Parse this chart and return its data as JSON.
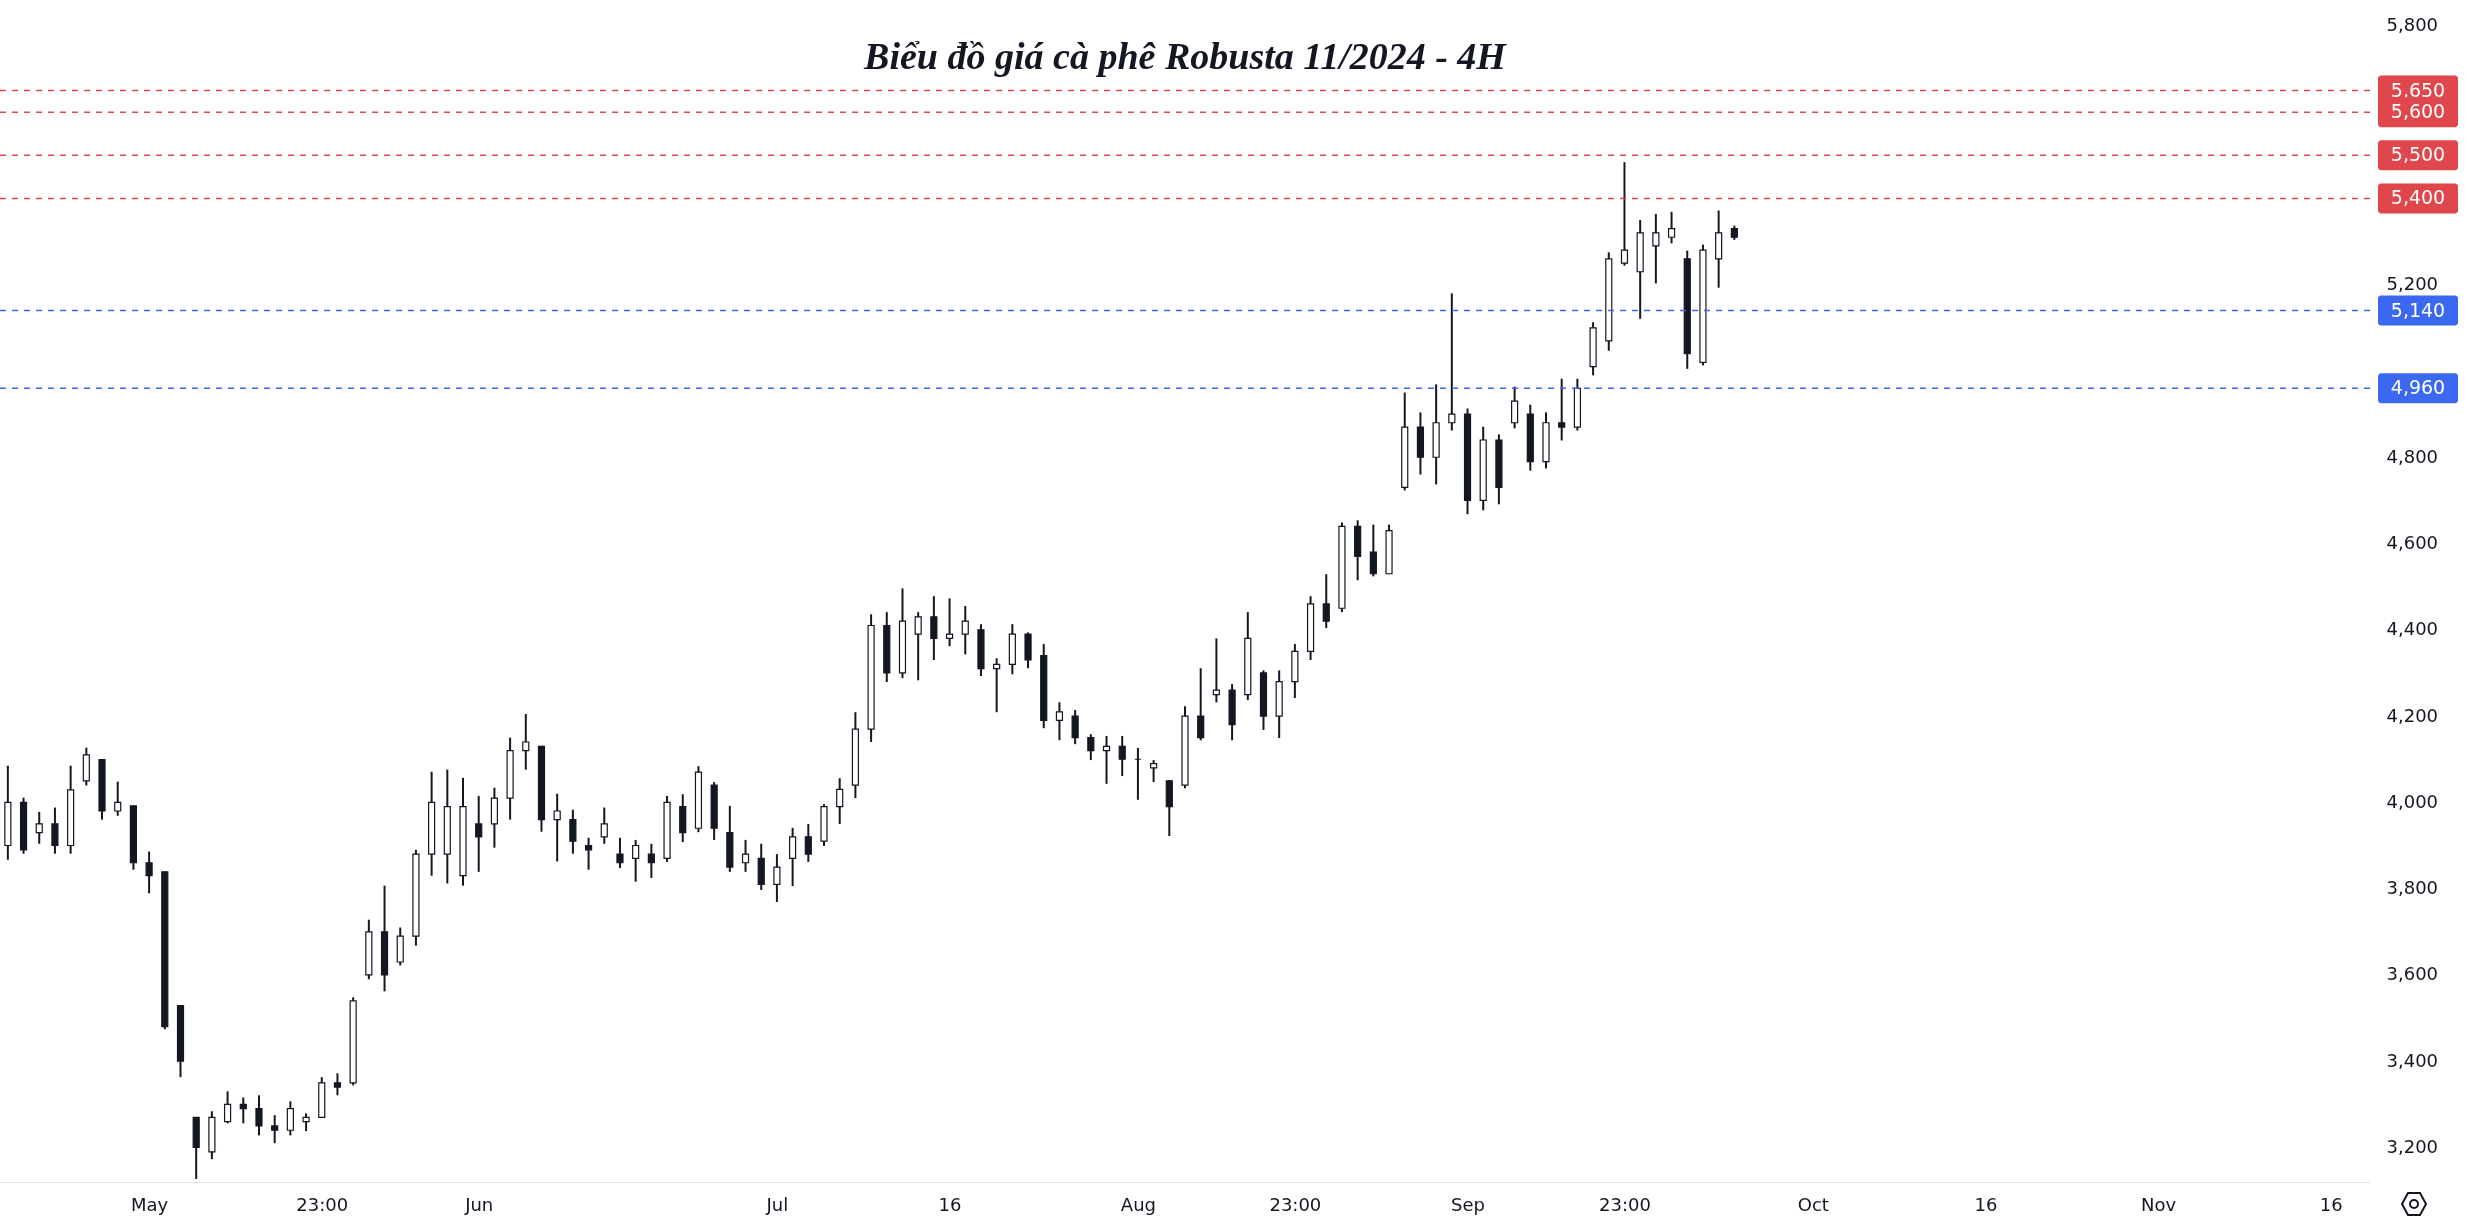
{
  "chart_data": {
    "type": "candlestick",
    "title": "Biểu đồ giá cà phê Robusta 11/2024 - 4H",
    "categories": [
      null,
      null,
      null,
      null,
      null,
      null,
      null,
      null,
      null,
      "May",
      null,
      null,
      null,
      null,
      null,
      null,
      null,
      null,
      null,
      null,
      "23:00",
      null,
      null,
      null,
      null,
      null,
      null,
      null,
      null,
      null,
      "Jun",
      null,
      null,
      null,
      null,
      null,
      null,
      null,
      null,
      null,
      null,
      null,
      null,
      null,
      null,
      null,
      null,
      null,
      null,
      "Jul",
      null,
      null,
      null,
      null,
      null,
      null,
      null,
      null,
      null,
      null,
      "16",
      null,
      null,
      null,
      null,
      null,
      null,
      null,
      null,
      null,
      null,
      null,
      "Aug",
      null,
      null,
      null,
      null,
      null,
      null,
      null,
      null,
      null,
      "23:00",
      null,
      null,
      null,
      null,
      null,
      null,
      null,
      null,
      null,
      null,
      "Sep",
      null,
      null,
      null,
      null,
      null,
      null,
      null,
      null,
      null,
      "23:00",
      null,
      null,
      null,
      null,
      null,
      null,
      null,
      null,
      null,
      null,
      null,
      "Oct",
      null,
      null,
      null,
      null,
      null,
      null,
      null,
      null,
      null,
      null,
      "16",
      null,
      null,
      null,
      null,
      null,
      null,
      null,
      null,
      null,
      null,
      "Nov",
      null,
      null,
      null,
      null,
      null,
      null,
      null,
      null,
      null,
      null,
      "16",
      null,
      null
    ],
    "ohlc": [
      [
        3900,
        4085,
        3867,
        4000
      ],
      [
        4000,
        4011,
        3881,
        3890
      ],
      [
        3930,
        3978,
        3904,
        3950
      ],
      [
        3950,
        3988,
        3881,
        3900
      ],
      [
        3900,
        4085,
        3881,
        4029
      ],
      [
        4050,
        4127,
        4039,
        4110
      ],
      [
        4099,
        4099,
        3960,
        3980
      ],
      [
        3980,
        4048,
        3969,
        4000
      ],
      [
        3992,
        3992,
        3844,
        3860
      ],
      [
        3860,
        3886,
        3789,
        3830
      ],
      [
        3839,
        3839,
        3474,
        3480
      ],
      [
        3529,
        3529,
        3363,
        3400
      ],
      [
        3270,
        3270,
        3127,
        3200
      ],
      [
        3190,
        3284,
        3173,
        3270
      ],
      [
        3260,
        3330,
        3256,
        3300
      ],
      [
        3300,
        3316,
        3256,
        3290
      ],
      [
        3290,
        3321,
        3228,
        3250
      ],
      [
        3250,
        3275,
        3210,
        3240
      ],
      [
        3240,
        3307,
        3228,
        3290
      ],
      [
        3260,
        3279,
        3238,
        3270
      ],
      [
        3270,
        3363,
        3270,
        3350
      ],
      [
        3350,
        3372,
        3321,
        3340
      ],
      [
        3350,
        3548,
        3344,
        3540
      ],
      [
        3600,
        3728,
        3590,
        3700
      ],
      [
        3700,
        3807,
        3562,
        3600
      ],
      [
        3630,
        3710,
        3622,
        3690
      ],
      [
        3690,
        3890,
        3668,
        3880
      ],
      [
        3880,
        4071,
        3830,
        4000
      ],
      [
        3880,
        4076,
        3812,
        3990
      ],
      [
        3830,
        4057,
        3807,
        3990
      ],
      [
        3950,
        4015,
        3839,
        3920
      ],
      [
        3950,
        4034,
        3895,
        4010
      ],
      [
        4010,
        4150,
        3960,
        4120
      ],
      [
        4120,
        4205,
        4076,
        4140
      ],
      [
        4130,
        4131,
        3932,
        3960
      ],
      [
        3960,
        4020,
        3863,
        3980
      ],
      [
        3960,
        3983,
        3881,
        3910
      ],
      [
        3900,
        3918,
        3844,
        3890
      ],
      [
        3920,
        3988,
        3904,
        3950
      ],
      [
        3880,
        3918,
        3848,
        3860
      ],
      [
        3870,
        3913,
        3816,
        3900
      ],
      [
        3880,
        3904,
        3825,
        3860
      ],
      [
        3870,
        4015,
        3862,
        4000
      ],
      [
        3990,
        4019,
        3908,
        3930
      ],
      [
        3940,
        4084,
        3931,
        4070
      ],
      [
        4040,
        4047,
        3913,
        3940
      ],
      [
        3930,
        3992,
        3839,
        3850
      ],
      [
        3860,
        3913,
        3839,
        3880
      ],
      [
        3870,
        3904,
        3797,
        3810
      ],
      [
        3810,
        3880,
        3769,
        3850
      ],
      [
        3870,
        3941,
        3806,
        3920
      ],
      [
        3920,
        3950,
        3862,
        3880
      ],
      [
        3910,
        3996,
        3899,
        3990
      ],
      [
        3990,
        4056,
        3950,
        4030
      ],
      [
        4040,
        4209,
        4010,
        4170
      ],
      [
        4170,
        4436,
        4140,
        4410
      ],
      [
        4410,
        4441,
        4279,
        4300
      ],
      [
        4300,
        4496,
        4288,
        4420
      ],
      [
        4390,
        4441,
        4283,
        4430
      ],
      [
        4430,
        4478,
        4330,
        4380
      ],
      [
        4380,
        4473,
        4362,
        4390
      ],
      [
        4390,
        4455,
        4343,
        4420
      ],
      [
        4400,
        4413,
        4293,
        4310
      ],
      [
        4310,
        4334,
        4209,
        4320
      ],
      [
        4320,
        4413,
        4297,
        4390
      ],
      [
        4390,
        4394,
        4311,
        4330
      ],
      [
        4340,
        4367,
        4172,
        4190
      ],
      [
        4190,
        4232,
        4144,
        4210
      ],
      [
        4200,
        4214,
        4135,
        4150
      ],
      [
        4150,
        4158,
        4098,
        4120
      ],
      [
        4120,
        4154,
        4043,
        4130
      ],
      [
        4130,
        4154,
        4061,
        4100
      ],
      [
        4100,
        4126,
        4006,
        4100
      ],
      [
        4080,
        4098,
        4047,
        4090
      ],
      [
        4050,
        4052,
        3922,
        3990
      ],
      [
        4040,
        4223,
        4033,
        4200
      ],
      [
        4200,
        4311,
        4144,
        4150
      ],
      [
        4250,
        4380,
        4232,
        4260
      ],
      [
        4260,
        4274,
        4144,
        4180
      ],
      [
        4250,
        4441,
        4237,
        4380
      ],
      [
        4300,
        4306,
        4168,
        4200
      ],
      [
        4200,
        4306,
        4149,
        4280
      ],
      [
        4280,
        4367,
        4242,
        4350
      ],
      [
        4350,
        4478,
        4330,
        4460
      ],
      [
        4460,
        4529,
        4404,
        4420
      ],
      [
        4450,
        4649,
        4441,
        4640
      ],
      [
        4640,
        4654,
        4515,
        4570
      ],
      [
        4580,
        4644,
        4524,
        4530
      ],
      [
        4530,
        4644,
        4529,
        4630
      ],
      [
        4730,
        4950,
        4723,
        4870
      ],
      [
        4870,
        4904,
        4760,
        4800
      ],
      [
        4800,
        4969,
        4737,
        4880
      ],
      [
        4880,
        5180,
        4862,
        4900
      ],
      [
        4900,
        4913,
        4668,
        4700
      ],
      [
        4700,
        4871,
        4677,
        4840
      ],
      [
        4840,
        4853,
        4691,
        4730
      ],
      [
        4880,
        4964,
        4867,
        4930
      ],
      [
        4900,
        4922,
        4769,
        4790
      ],
      [
        4790,
        4904,
        4774,
        4880
      ],
      [
        4880,
        4982,
        4839,
        4870
      ],
      [
        4870,
        4982,
        4862,
        4960
      ],
      [
        5010,
        5113,
        4990,
        5100
      ],
      [
        5070,
        5275,
        5047,
        5260
      ],
      [
        5250,
        5484,
        5244,
        5280
      ],
      [
        5230,
        5350,
        5121,
        5320
      ],
      [
        5290,
        5364,
        5203,
        5320
      ],
      [
        5310,
        5369,
        5296,
        5330
      ],
      [
        5260,
        5279,
        5005,
        5040
      ],
      [
        5020,
        5293,
        5013,
        5280
      ],
      [
        5260,
        5372,
        5193,
        5320
      ],
      [
        5330,
        5337,
        5304,
        5310
      ],
      null,
      null,
      null,
      null,
      null,
      null,
      null,
      null,
      null,
      null,
      null,
      null,
      null,
      null,
      null,
      null,
      null,
      null,
      null,
      null,
      null,
      null,
      null,
      null,
      null,
      null,
      null,
      null,
      null,
      null,
      null,
      null,
      null,
      null,
      null,
      null,
      null,
      null,
      null,
      null
    ],
    "ylim": [
      3120,
      5860
    ],
    "yticks": [
      {
        "value": 3200,
        "label": "3,200"
      },
      {
        "value": 3400,
        "label": "3,400"
      },
      {
        "value": 3600,
        "label": "3,600"
      },
      {
        "value": 3800,
        "label": "3,800"
      },
      {
        "value": 4000,
        "label": "4,000"
      },
      {
        "value": 4200,
        "label": "4,200"
      },
      {
        "value": 4400,
        "label": "4,400"
      },
      {
        "value": 4600,
        "label": "4,600"
      },
      {
        "value": 4800,
        "label": "4,800"
      },
      {
        "value": 5200,
        "label": "5,200"
      },
      {
        "value": 5800,
        "label": "5,800"
      }
    ],
    "ref_lines": [
      {
        "axis": "y",
        "value": 5650,
        "label": "5,650",
        "color": "#e0474c",
        "line_style": "dashed"
      },
      {
        "axis": "y",
        "value": 5600,
        "label": "5,600",
        "color": "#e0474c",
        "line_style": "dashed"
      },
      {
        "axis": "y",
        "value": 5500,
        "label": "5,500",
        "color": "#e0474c",
        "line_style": "dashed"
      },
      {
        "axis": "y",
        "value": 5400,
        "label": "5,400",
        "color": "#e0474c",
        "line_style": "dashed"
      },
      {
        "axis": "y",
        "value": 5140,
        "label": "5,140",
        "color": "#3c68f0",
        "line_style": "dashed"
      },
      {
        "axis": "y",
        "value": 4960,
        "label": "4,960",
        "color": "#3c68f0",
        "line_style": "dashed"
      }
    ]
  }
}
